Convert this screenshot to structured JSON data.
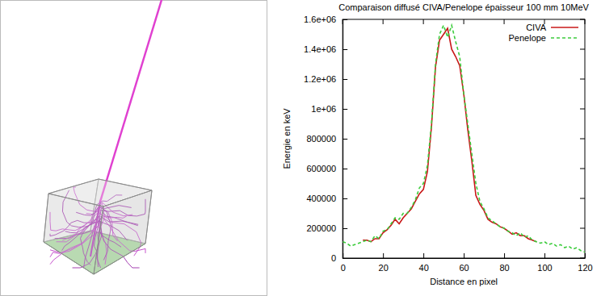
{
  "chart_data": {
    "type": "line",
    "title": "Comparaison diffusé CIVA/Penelope épaisseur 100 mm 10MeV",
    "x_label": "Distance en pixel",
    "y_label": "Energie en keV",
    "xlim": [
      0,
      120
    ],
    "xticks": [
      0,
      20,
      40,
      60,
      80,
      100,
      120
    ],
    "ylim": [
      0,
      1600000
    ],
    "yticks": [
      0,
      200000,
      400000,
      600000,
      800000,
      {
        "value": 1000000,
        "label": "1e+06"
      },
      {
        "value": 1200000,
        "label": "1.2e+06"
      },
      {
        "value": 1400000,
        "label": "1.4e+06"
      },
      {
        "value": 1600000,
        "label": "1.6e+06"
      }
    ],
    "grid": false,
    "legend": "top-right",
    "series": [
      {
        "name": "CIVA",
        "color": "#c81818",
        "line_style": "solid",
        "x": [
          10,
          12,
          14,
          16,
          18,
          20,
          22,
          24,
          26,
          28,
          30,
          32,
          34,
          36,
          38,
          40,
          42,
          44,
          46,
          48,
          50,
          52,
          54,
          56,
          58,
          60,
          62,
          64,
          66,
          68,
          70,
          72,
          74,
          76,
          78,
          80,
          82,
          84,
          86,
          88,
          90,
          92,
          94,
          96
        ],
        "values": [
          120000,
          120000,
          110000,
          130000,
          130000,
          170000,
          190000,
          220000,
          260000,
          230000,
          270000,
          300000,
          330000,
          380000,
          430000,
          460000,
          580000,
          880000,
          1280000,
          1460000,
          1500000,
          1540000,
          1400000,
          1350000,
          1290000,
          1100000,
          860000,
          650000,
          420000,
          360000,
          320000,
          260000,
          240000,
          230000,
          210000,
          200000,
          180000,
          160000,
          170000,
          150000,
          150000,
          130000,
          120000,
          110000
        ]
      },
      {
        "name": "Penelope",
        "color": "#3ccc3c",
        "line_style": "dashed",
        "x": [
          0,
          2,
          4,
          6,
          8,
          10,
          12,
          14,
          16,
          18,
          20,
          22,
          24,
          26,
          28,
          30,
          32,
          34,
          36,
          38,
          40,
          42,
          44,
          46,
          48,
          50,
          52,
          54,
          56,
          58,
          60,
          62,
          64,
          66,
          68,
          70,
          72,
          74,
          76,
          78,
          80,
          82,
          84,
          86,
          88,
          90,
          92,
          94,
          96,
          98,
          100,
          102,
          104,
          106,
          108,
          110,
          112,
          114,
          116,
          118,
          120
        ],
        "values": [
          110000,
          100000,
          80000,
          90000,
          100000,
          110000,
          120000,
          110000,
          150000,
          130000,
          180000,
          190000,
          230000,
          270000,
          260000,
          300000,
          300000,
          340000,
          390000,
          470000,
          500000,
          620000,
          900000,
          1300000,
          1500000,
          1560000,
          1480000,
          1560000,
          1450000,
          1350000,
          1100000,
          900000,
          700000,
          500000,
          380000,
          330000,
          270000,
          250000,
          230000,
          210000,
          200000,
          180000,
          170000,
          150000,
          170000,
          140000,
          150000,
          120000,
          110000,
          100000,
          110000,
          90000,
          100000,
          80000,
          90000,
          70000,
          80000,
          60000,
          70000,
          50000,
          40000
        ]
      }
    ]
  }
}
